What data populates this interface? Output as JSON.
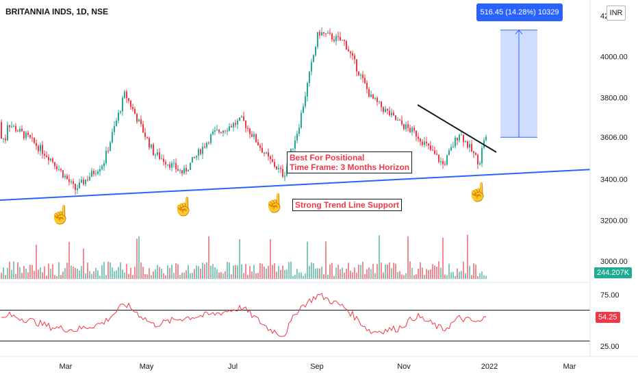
{
  "header": {
    "title": "BRITANNIA INDS, 1D, NSE",
    "currency": "INR"
  },
  "measure": {
    "label": "516.45 (14.28%) 10329"
  },
  "annotations": {
    "positional": [
      "Best For Positional",
      "Time Frame:  3 Months Horizon"
    ],
    "support": "Strong Trend Line Support"
  },
  "badges": {
    "volume": "244.207K",
    "rsi": "54.25"
  },
  "icons": {
    "hand": "pointing-hand-icon"
  },
  "colors": {
    "up": "#22ab94",
    "down": "#f23645",
    "trendline": "#2962ff",
    "rsi_line": "#f23645",
    "measure_fill": "#2962ff"
  },
  "chart_data": [
    {
      "type": "candlestick",
      "title": "BRITANNIA INDS, 1D, NSE",
      "ylim": [
        2950,
        4230
      ],
      "y_ticks": [
        "3000.00",
        "3200.00",
        "3400.00",
        "3606.00",
        "3800.00",
        "4000.00",
        "42"
      ],
      "x_ticks": [
        "Mar",
        "May",
        "Jul",
        "Sep",
        "Nov",
        "2022",
        "Mar"
      ],
      "series": [
        {
          "name": "price",
          "x": [
            "Jan 7",
            "Jan 28",
            "Feb 18",
            "Mar 8",
            "Mar 29",
            "Apr 15",
            "May 6",
            "May 27",
            "Jun 17",
            "Jul 8",
            "Jul 27",
            "Aug 8",
            "Aug 18",
            "Sep 2",
            "Sep 20",
            "Oct 8",
            "Oct 27",
            "Nov 10",
            "Nov 29",
            "Dec 10",
            "Dec 24",
            "Jan 3"
          ],
          "values": [
            3680,
            3600,
            3500,
            3350,
            3480,
            3820,
            3530,
            3430,
            3620,
            3690,
            3500,
            3420,
            3650,
            4120,
            4070,
            3800,
            3680,
            3620,
            3470,
            3630,
            3480,
            3600
          ]
        }
      ],
      "lines": [
        {
          "name": "support_trendline",
          "from": [
            "Jan 1",
            3320
          ],
          "to": [
            "Feb 20 2022",
            3455
          ]
        },
        {
          "name": "resistance_trendline",
          "from": [
            "Nov 8",
            3760
          ],
          "to": [
            "Jan 5",
            3540
          ]
        }
      ],
      "measure_range": {
        "from": 3606,
        "to": 4130
      }
    },
    {
      "type": "bar",
      "name": "volume",
      "last_value": "244.207K"
    },
    {
      "type": "line",
      "name": "RSI",
      "ylim": [
        0,
        100
      ],
      "y_ticks": [
        "25.00",
        "75.00"
      ],
      "bands": [
        30,
        70
      ],
      "values": [
        60,
        52,
        42,
        38,
        48,
        75,
        45,
        55,
        60,
        70,
        40,
        30,
        68,
        88,
        70,
        35,
        40,
        58,
        38,
        55,
        48,
        54.25
      ]
    }
  ]
}
